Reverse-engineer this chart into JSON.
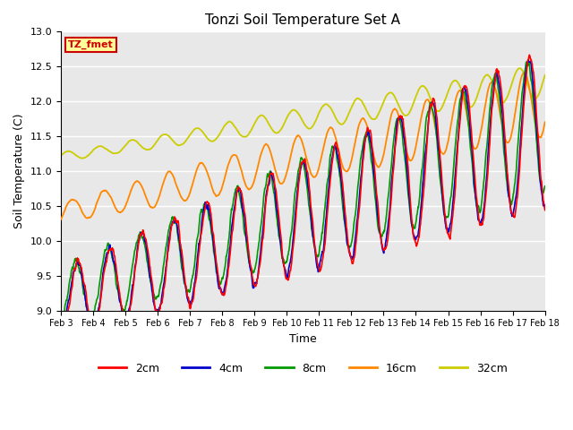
{
  "title": "Tonzi Soil Temperature Set A",
  "xlabel": "Time",
  "ylabel": "Soil Temperature (C)",
  "ylim": [
    9.0,
    13.0
  ],
  "yticks": [
    9.0,
    9.5,
    10.0,
    10.5,
    11.0,
    11.5,
    12.0,
    12.5,
    13.0
  ],
  "date_labels": [
    "Feb 3",
    "Feb 4",
    "Feb 5",
    "Feb 6",
    "Feb 7",
    "Feb 8",
    "Feb 9",
    "Feb 10",
    "Feb 11",
    "Feb 12",
    "Feb 13",
    "Feb 14",
    "Feb 15",
    "Feb 16",
    "Feb 17",
    "Feb 18"
  ],
  "colors": {
    "2cm": "#ff0000",
    "4cm": "#0000cc",
    "8cm": "#009900",
    "16cm": "#ff8800",
    "32cm": "#cccc00"
  },
  "legend_labels": [
    "2cm",
    "4cm",
    "8cm",
    "16cm",
    "32cm"
  ],
  "label_text": "TZ_fmet",
  "label_bg": "#ffff99",
  "label_border": "#cc0000",
  "bg_color": "#e8e8e8",
  "fig_bg": "#ffffff"
}
